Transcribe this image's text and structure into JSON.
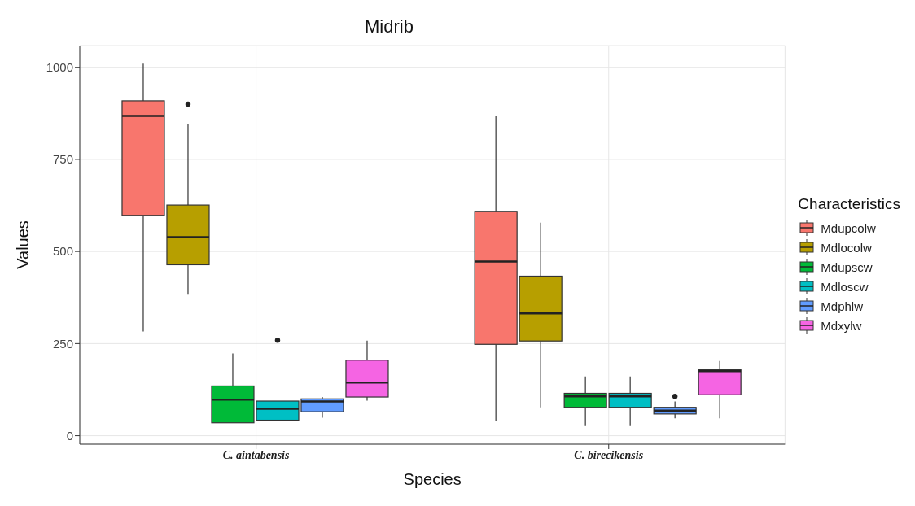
{
  "chart_data": {
    "type": "box",
    "title": "Midrib",
    "xlabel": "Species",
    "ylabel": "Values",
    "legend_title": "Characteristics",
    "legend": "right",
    "grid": true,
    "categories": [
      "C. aintabensis",
      "C. birecikensis"
    ],
    "ylim": [
      -23,
      1059
    ],
    "yticks": [
      0,
      250,
      500,
      750,
      1000
    ],
    "series": [
      {
        "name": "Mdupcolw",
        "color": "#f8766d",
        "boxes": [
          {
            "low": 283,
            "q1": 598,
            "median": 868,
            "q3": 909,
            "high": 1010
          },
          {
            "low": 39,
            "q1": 248,
            "median": 473,
            "q3": 609,
            "high": 868
          }
        ]
      },
      {
        "name": "Mdlocolw",
        "color": "#b79f00",
        "boxes": [
          {
            "low": 383,
            "q1": 464,
            "median": 539,
            "q3": 626,
            "high": 847,
            "outliers": [
              900
            ]
          },
          {
            "low": 77,
            "q1": 257,
            "median": 332,
            "q3": 433,
            "high": 578
          }
        ]
      },
      {
        "name": "Mdupscw",
        "color": "#00ba38",
        "boxes": [
          {
            "low": 35,
            "q1": 35,
            "median": 98,
            "q3": 135,
            "high": 223
          },
          {
            "low": 26,
            "q1": 77,
            "median": 107,
            "q3": 115,
            "high": 161
          }
        ]
      },
      {
        "name": "Mdloscw",
        "color": "#00bfc4",
        "boxes": [
          {
            "low": 42,
            "q1": 42,
            "median": 73,
            "q3": 94,
            "high": 94,
            "outliers": [
              259
            ]
          },
          {
            "low": 26,
            "q1": 77,
            "median": 107,
            "q3": 115,
            "high": 161
          }
        ]
      },
      {
        "name": "Mdphlw",
        "color": "#619cff",
        "boxes": [
          {
            "low": 49,
            "q1": 65,
            "median": 93,
            "q3": 100,
            "high": 105
          },
          {
            "low": 47,
            "q1": 59,
            "median": 68,
            "q3": 77,
            "high": 93,
            "outliers": [
              107
            ]
          }
        ]
      },
      {
        "name": "Mdxylw",
        "color": "#f564e3",
        "boxes": [
          {
            "low": 95,
            "q1": 105,
            "median": 144,
            "q3": 205,
            "high": 258
          },
          {
            "low": 47,
            "q1": 111,
            "median": 175,
            "q3": 179,
            "high": 203
          }
        ]
      }
    ]
  }
}
